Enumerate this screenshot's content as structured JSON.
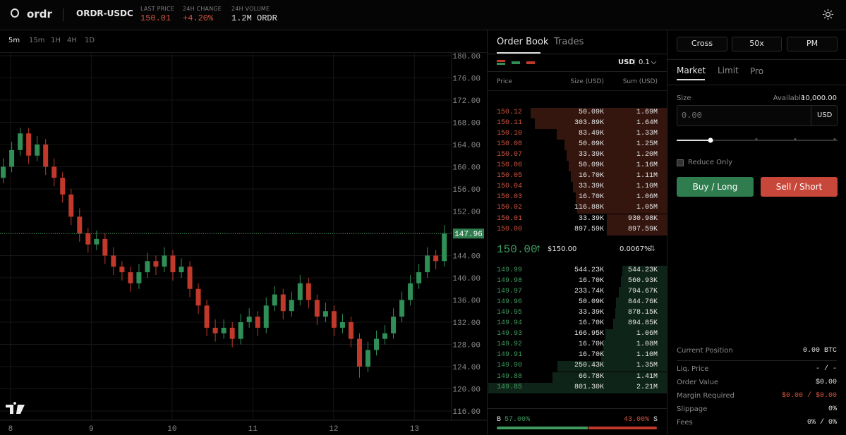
{
  "header": {
    "logo": "ordr",
    "pair": "ORDR-USDC",
    "stats": [
      {
        "label": "LAST PRICE",
        "value": "150.01"
      },
      {
        "label": "24H CHANGE",
        "value": "+4.20%"
      },
      {
        "label": "24H VOLUME",
        "value": "1.2M ORDR"
      }
    ]
  },
  "timeframes": [
    "5m",
    "15m",
    "1H",
    "4H",
    "1D"
  ],
  "chart": {
    "type": "candlestick",
    "x": [
      7.91,
      8.015,
      8.12,
      8.225,
      8.33,
      8.435,
      8.54,
      8.645,
      8.75,
      8.855,
      8.96,
      9.065,
      9.17,
      9.275,
      9.38,
      9.485,
      9.59,
      9.695,
      9.8,
      9.905,
      10.01,
      10.115,
      10.22,
      10.325,
      10.43,
      10.535,
      10.64,
      10.745,
      10.85,
      10.955,
      11.06,
      11.165,
      11.27,
      11.375,
      11.48,
      11.585,
      11.69,
      11.795,
      11.9,
      12.005,
      12.11,
      12.215,
      12.32,
      12.425,
      12.53,
      12.635,
      12.74,
      12.845,
      12.95,
      13.055,
      13.16,
      13.265,
      13.37
    ],
    "candles": [
      [
        158,
        161.5,
        157,
        160
      ],
      [
        160,
        164.5,
        159,
        163
      ],
      [
        163,
        167,
        162,
        166
      ],
      [
        166,
        167,
        160.5,
        162
      ],
      [
        162,
        165.5,
        161,
        164
      ],
      [
        164,
        165,
        158.5,
        160
      ],
      [
        160,
        161.5,
        156.5,
        158
      ],
      [
        158,
        159,
        153.5,
        155
      ],
      [
        155,
        156,
        149.5,
        151
      ],
      [
        151,
        152.5,
        146.5,
        148
      ],
      [
        148,
        149,
        144.5,
        146
      ],
      [
        146,
        148.5,
        145,
        147
      ],
      [
        147,
        148,
        142.5,
        144
      ],
      [
        144,
        145.5,
        140.5,
        142
      ],
      [
        142,
        143,
        139.5,
        141
      ],
      [
        141,
        142,
        137.5,
        139
      ],
      [
        139,
        142.5,
        138,
        141
      ],
      [
        141,
        144.5,
        140,
        143
      ],
      [
        143,
        144,
        140.5,
        142
      ],
      [
        142,
        145.5,
        141,
        144
      ],
      [
        144,
        145,
        139.5,
        141
      ],
      [
        141,
        143.5,
        140,
        142
      ],
      [
        142,
        143,
        136.5,
        138
      ],
      [
        138,
        139,
        133.5,
        135
      ],
      [
        135,
        136,
        129.5,
        131
      ],
      [
        131,
        132.5,
        128.5,
        130
      ],
      [
        130,
        132.5,
        129,
        131
      ],
      [
        131,
        132,
        127.5,
        129
      ],
      [
        129,
        133.5,
        128,
        132
      ],
      [
        132,
        134.5,
        131,
        133
      ],
      [
        133,
        134,
        129.5,
        131
      ],
      [
        131,
        136.5,
        130,
        135
      ],
      [
        135,
        138.5,
        134,
        137
      ],
      [
        137,
        138,
        132.5,
        134
      ],
      [
        134,
        137.5,
        133,
        136
      ],
      [
        136,
        140.5,
        135,
        139
      ],
      [
        139,
        140,
        134.5,
        136
      ],
      [
        136,
        137,
        131.5,
        133
      ],
      [
        133,
        135.5,
        132,
        134
      ],
      [
        134,
        135,
        129.5,
        131
      ],
      [
        131,
        133.5,
        130,
        132
      ],
      [
        132,
        133,
        127.5,
        129
      ],
      [
        129,
        130,
        122,
        124
      ],
      [
        124,
        128.5,
        123,
        127
      ],
      [
        127,
        130.5,
        126,
        129
      ],
      [
        129,
        131.5,
        128,
        130
      ],
      [
        130,
        134.5,
        129,
        133
      ],
      [
        133,
        137.5,
        132,
        136
      ],
      [
        136,
        140.5,
        135,
        139
      ],
      [
        139,
        142.5,
        138,
        141
      ],
      [
        141,
        145.5,
        140,
        144
      ],
      [
        144,
        145,
        141.5,
        143
      ],
      [
        143,
        149.5,
        142,
        147.96
      ]
    ],
    "up_color": "#2f8f57",
    "down_color": "#c0392b",
    "xlim": [
      7.87,
      13.46
    ],
    "xticks": [
      8,
      9,
      10,
      11,
      12,
      13
    ],
    "ylim": [
      114.35,
      180.63
    ],
    "yticks": [
      {
        "value": 116,
        "label": "116.00"
      },
      {
        "value": 120,
        "label": "120.00"
      },
      {
        "value": 124,
        "label": "124.00"
      },
      {
        "value": 128,
        "label": "128.00"
      },
      {
        "value": 132,
        "label": "132.00"
      },
      {
        "value": 136,
        "label": "136.00"
      },
      {
        "value": 140,
        "label": "140.00"
      },
      {
        "value": 144,
        "label": "144.00"
      },
      {
        "value": 148,
        "label": "148.00"
      },
      {
        "value": 152,
        "label": "152.00"
      },
      {
        "value": 156,
        "label": "156.00"
      },
      {
        "value": 160,
        "label": "160.00"
      },
      {
        "value": 164,
        "label": "164.00"
      },
      {
        "value": 168,
        "label": "168.00"
      },
      {
        "value": 172,
        "label": "172.00"
      },
      {
        "value": 176,
        "label": "176.00"
      },
      {
        "value": 180,
        "label": "180.00"
      }
    ],
    "last_price": 147.96,
    "grid": true
  },
  "order_book": {
    "tabs": [
      "Order Book",
      "Trades"
    ],
    "currency": "USD",
    "tick": "0.1",
    "headers": [
      "Price",
      "Size (USD)",
      "Sum (USD)"
    ],
    "asks": [
      [
        "150.12",
        "50.09K",
        "1.69M"
      ],
      [
        "150.11",
        "303.89K",
        "1.64M"
      ],
      [
        "150.10",
        "83.49K",
        "1.33M"
      ],
      [
        "150.08",
        "50.09K",
        "1.25M"
      ],
      [
        "150.07",
        "33.39K",
        "1.20M"
      ],
      [
        "150.06",
        "50.09K",
        "1.16M"
      ],
      [
        "150.05",
        "16.70K",
        "1.11M"
      ],
      [
        "150.04",
        "33.39K",
        "1.10M"
      ],
      [
        "150.03",
        "16.70K",
        "1.06M"
      ],
      [
        "150.02",
        "116.88K",
        "1.05M"
      ],
      [
        "150.01",
        "33.39K",
        "930.98K"
      ],
      [
        "150.00",
        "897.59K",
        "897.59K"
      ]
    ],
    "mid": {
      "price": "150.00",
      "usd": "$150.00",
      "spread": "0.0067%"
    },
    "bids": [
      [
        "149.99",
        "544.23K",
        "544.23K"
      ],
      [
        "149.98",
        "16.70K",
        "560.93K"
      ],
      [
        "149.97",
        "233.74K",
        "794.67K"
      ],
      [
        "149.96",
        "50.09K",
        "844.76K"
      ],
      [
        "149.95",
        "33.39K",
        "878.15K"
      ],
      [
        "149.94",
        "16.70K",
        "894.85K"
      ],
      [
        "149.93",
        "166.95K",
        "1.06M"
      ],
      [
        "149.92",
        "16.70K",
        "1.08M"
      ],
      [
        "149.91",
        "16.70K",
        "1.10M"
      ],
      [
        "149.90",
        "250.43K",
        "1.35M"
      ],
      [
        "149.88",
        "66.78K",
        "1.41M"
      ],
      [
        "149.85",
        "801.30K",
        "2.21M"
      ]
    ],
    "ratio": {
      "buy_label": "B",
      "buy": {
        "value": 57,
        "label": "57.00%"
      },
      "sell": {
        "value": 43,
        "label": "43.00%"
      },
      "sell_label": "S"
    }
  },
  "trade_panel": {
    "margin_mode": "Cross",
    "leverage": "50x",
    "mode": "PM",
    "tabs": [
      "Market",
      "Limit",
      "Pro"
    ],
    "size_label": "Size",
    "available_label": "Available",
    "available": "10,000.00",
    "size_placeholder": "0.00",
    "size_unit": "USD",
    "reduce_only": "Reduce Only",
    "buy": "Buy / Long",
    "sell": "Sell / Short",
    "info": [
      [
        "Current Position",
        "0.00 BTC"
      ],
      [
        "Liq. Price",
        "- / -"
      ],
      [
        "Order Value",
        "$0.00"
      ],
      [
        "Margin Required",
        "$0.00 / $0.00"
      ],
      [
        "Slippage",
        "0%"
      ],
      [
        "Fees",
        "0% / 0%"
      ]
    ]
  }
}
